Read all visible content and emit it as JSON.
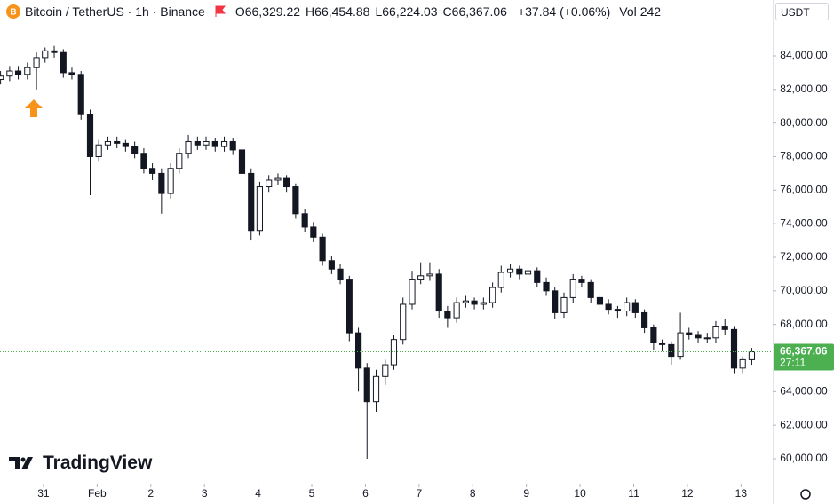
{
  "header": {
    "symbol": "Bitcoin / TetherUS · 1h · Binance",
    "ohlc": [
      {
        "key": "O",
        "value": "66,329.22"
      },
      {
        "key": "H",
        "value": "66,454.88"
      },
      {
        "key": "L",
        "value": "66,224.03"
      },
      {
        "key": "C",
        "value": "66,367.06"
      }
    ],
    "change": "+37.84 (+0.06%)",
    "vol_key": "Vol",
    "vol": "242"
  },
  "currency": "USDT",
  "brand": "TradingView",
  "chart_data": {
    "type": "candlestick",
    "up_color": "#ffffff",
    "down_color": "#131722",
    "line_color": "#131722",
    "price_line_color": "#4caf50",
    "last_price": {
      "label": "66,367.06",
      "countdown": "27:11"
    },
    "xlim": [
      30.19,
      44.59
    ],
    "ylim": [
      58520,
      87330
    ],
    "xticks": [
      {
        "value": 31,
        "label": "31"
      },
      {
        "value": 32,
        "label": "Feb"
      },
      {
        "value": 33,
        "label": "2"
      },
      {
        "value": 34,
        "label": "3"
      },
      {
        "value": 35,
        "label": "4"
      },
      {
        "value": 36,
        "label": "5"
      },
      {
        "value": 37,
        "label": "6"
      },
      {
        "value": 38,
        "label": "7"
      },
      {
        "value": 39,
        "label": "8"
      },
      {
        "value": 40,
        "label": "9"
      },
      {
        "value": 41,
        "label": "10"
      },
      {
        "value": 42,
        "label": "11"
      },
      {
        "value": 43,
        "label": "12"
      },
      {
        "value": 44,
        "label": "13"
      }
    ],
    "yticks": [
      {
        "value": 60000,
        "label": "60,000.00"
      },
      {
        "value": 62000,
        "label": "62,000.00"
      },
      {
        "value": 64000,
        "label": "64,000.00"
      },
      {
        "value": 66000,
        "label": "66,000.00"
      },
      {
        "value": 68000,
        "label": "68,000.00"
      },
      {
        "value": 70000,
        "label": "70,000.00"
      },
      {
        "value": 72000,
        "label": "72,000.00"
      },
      {
        "value": 74000,
        "label": "74,000.00"
      },
      {
        "value": 76000,
        "label": "76,000.00"
      },
      {
        "value": 78000,
        "label": "78,000.00"
      },
      {
        "value": 80000,
        "label": "80,000.00"
      },
      {
        "value": 82000,
        "label": "82,000.00"
      },
      {
        "value": 84000,
        "label": "84,000.00"
      }
    ],
    "x": [
      30.2,
      30.37,
      30.53,
      30.7,
      30.87,
      31.03,
      31.2,
      31.37,
      31.53,
      31.7,
      31.87,
      32.03,
      32.2,
      32.37,
      32.53,
      32.7,
      32.87,
      33.03,
      33.2,
      33.37,
      33.53,
      33.7,
      33.87,
      34.03,
      34.2,
      34.37,
      34.53,
      34.7,
      34.87,
      35.03,
      35.2,
      35.37,
      35.53,
      35.7,
      35.87,
      36.03,
      36.2,
      36.37,
      36.53,
      36.7,
      36.87,
      37.03,
      37.2,
      37.37,
      37.53,
      37.7,
      37.87,
      38.03,
      38.2,
      38.37,
      38.53,
      38.7,
      38.87,
      39.03,
      39.2,
      39.37,
      39.53,
      39.7,
      39.87,
      40.03,
      40.2,
      40.37,
      40.53,
      40.7,
      40.87,
      41.03,
      41.2,
      41.37,
      41.53,
      41.7,
      41.87,
      42.03,
      42.2,
      42.37,
      42.53,
      42.7,
      42.87,
      43.03,
      43.2,
      43.37,
      43.53,
      43.7,
      43.87,
      44.03,
      44.2
    ],
    "open": [
      82600,
      82800,
      83100,
      82900,
      83300,
      83900,
      84300,
      84200,
      83000,
      82900,
      80500,
      78000,
      78700,
      78900,
      78800,
      78600,
      78200,
      77300,
      77000,
      75800,
      77300,
      78200,
      78900,
      78700,
      78900,
      78600,
      78900,
      78400,
      77000,
      73600,
      76200,
      76600,
      76700,
      76200,
      74600,
      73800,
      73200,
      71800,
      71300,
      70700,
      67500,
      65400,
      63400,
      64900,
      65600,
      67100,
      69200,
      70700,
      70900,
      71000,
      68800,
      68400,
      69300,
      69400,
      69200,
      69300,
      70200,
      71100,
      71300,
      71000,
      71200,
      70500,
      70000,
      68700,
      69600,
      70700,
      70500,
      69600,
      69200,
      68900,
      68800,
      69300,
      68700,
      67800,
      66900,
      66800,
      66100,
      67500,
      67400,
      67200,
      67200,
      67900,
      67700,
      65400,
      65900
    ],
    "high": [
      83100,
      83400,
      83400,
      83600,
      84200,
      84500,
      84600,
      84400,
      83300,
      83100,
      80800,
      79000,
      79200,
      79200,
      79000,
      78900,
      78500,
      77600,
      77300,
      77600,
      78500,
      79300,
      79200,
      79200,
      79100,
      79200,
      79100,
      78600,
      77300,
      76500,
      76900,
      77000,
      76900,
      76400,
      74900,
      74100,
      73400,
      72100,
      71600,
      70900,
      67800,
      65700,
      65300,
      65900,
      67400,
      69600,
      71200,
      71700,
      71700,
      71300,
      69100,
      69600,
      69700,
      69600,
      69600,
      70500,
      71500,
      71600,
      71500,
      72200,
      71400,
      70800,
      70200,
      69900,
      71000,
      70900,
      70700,
      69800,
      69500,
      69100,
      69600,
      69500,
      68900,
      68000,
      67100,
      67000,
      68700,
      67800,
      67600,
      67500,
      68200,
      68300,
      67900,
      66100,
      66600
    ],
    "low": [
      82300,
      82500,
      82600,
      82600,
      82000,
      83600,
      83900,
      82700,
      82600,
      80200,
      75700,
      77700,
      78400,
      78500,
      78300,
      77900,
      77000,
      76600,
      74600,
      75500,
      77000,
      77900,
      78400,
      78400,
      78300,
      78300,
      78100,
      76700,
      73000,
      73300,
      75900,
      76300,
      75900,
      74300,
      73500,
      72900,
      71500,
      71000,
      70400,
      67000,
      64000,
      60000,
      62800,
      64400,
      65300,
      66800,
      68900,
      70400,
      70600,
      68400,
      67800,
      68100,
      69000,
      68900,
      68900,
      69000,
      69900,
      70800,
      70700,
      70700,
      70200,
      69700,
      68300,
      68400,
      69300,
      70200,
      69300,
      68900,
      68600,
      68400,
      68500,
      68400,
      67500,
      66500,
      66400,
      65600,
      65900,
      67100,
      66900,
      66900,
      66900,
      67400,
      65100,
      65100,
      65600
    ],
    "close": [
      82800,
      83100,
      82900,
      83300,
      83900,
      84300,
      84200,
      83000,
      82900,
      80500,
      78000,
      78700,
      78900,
      78800,
      78600,
      78200,
      77300,
      77000,
      75800,
      77300,
      78200,
      78900,
      78700,
      78900,
      78600,
      78900,
      78400,
      77000,
      73600,
      76200,
      76600,
      76700,
      76200,
      74600,
      73800,
      73200,
      71800,
      71300,
      70700,
      67500,
      65400,
      63400,
      64900,
      65600,
      67100,
      69200,
      70700,
      70900,
      71000,
      68800,
      68400,
      69300,
      69400,
      69200,
      69300,
      70200,
      71100,
      71300,
      71000,
      71200,
      70500,
      70000,
      68700,
      69600,
      70700,
      70500,
      69600,
      69200,
      68900,
      68800,
      69300,
      68700,
      67800,
      66900,
      66800,
      66100,
      67500,
      67400,
      67200,
      67200,
      67900,
      67700,
      65400,
      65900,
      66367.06
    ]
  }
}
